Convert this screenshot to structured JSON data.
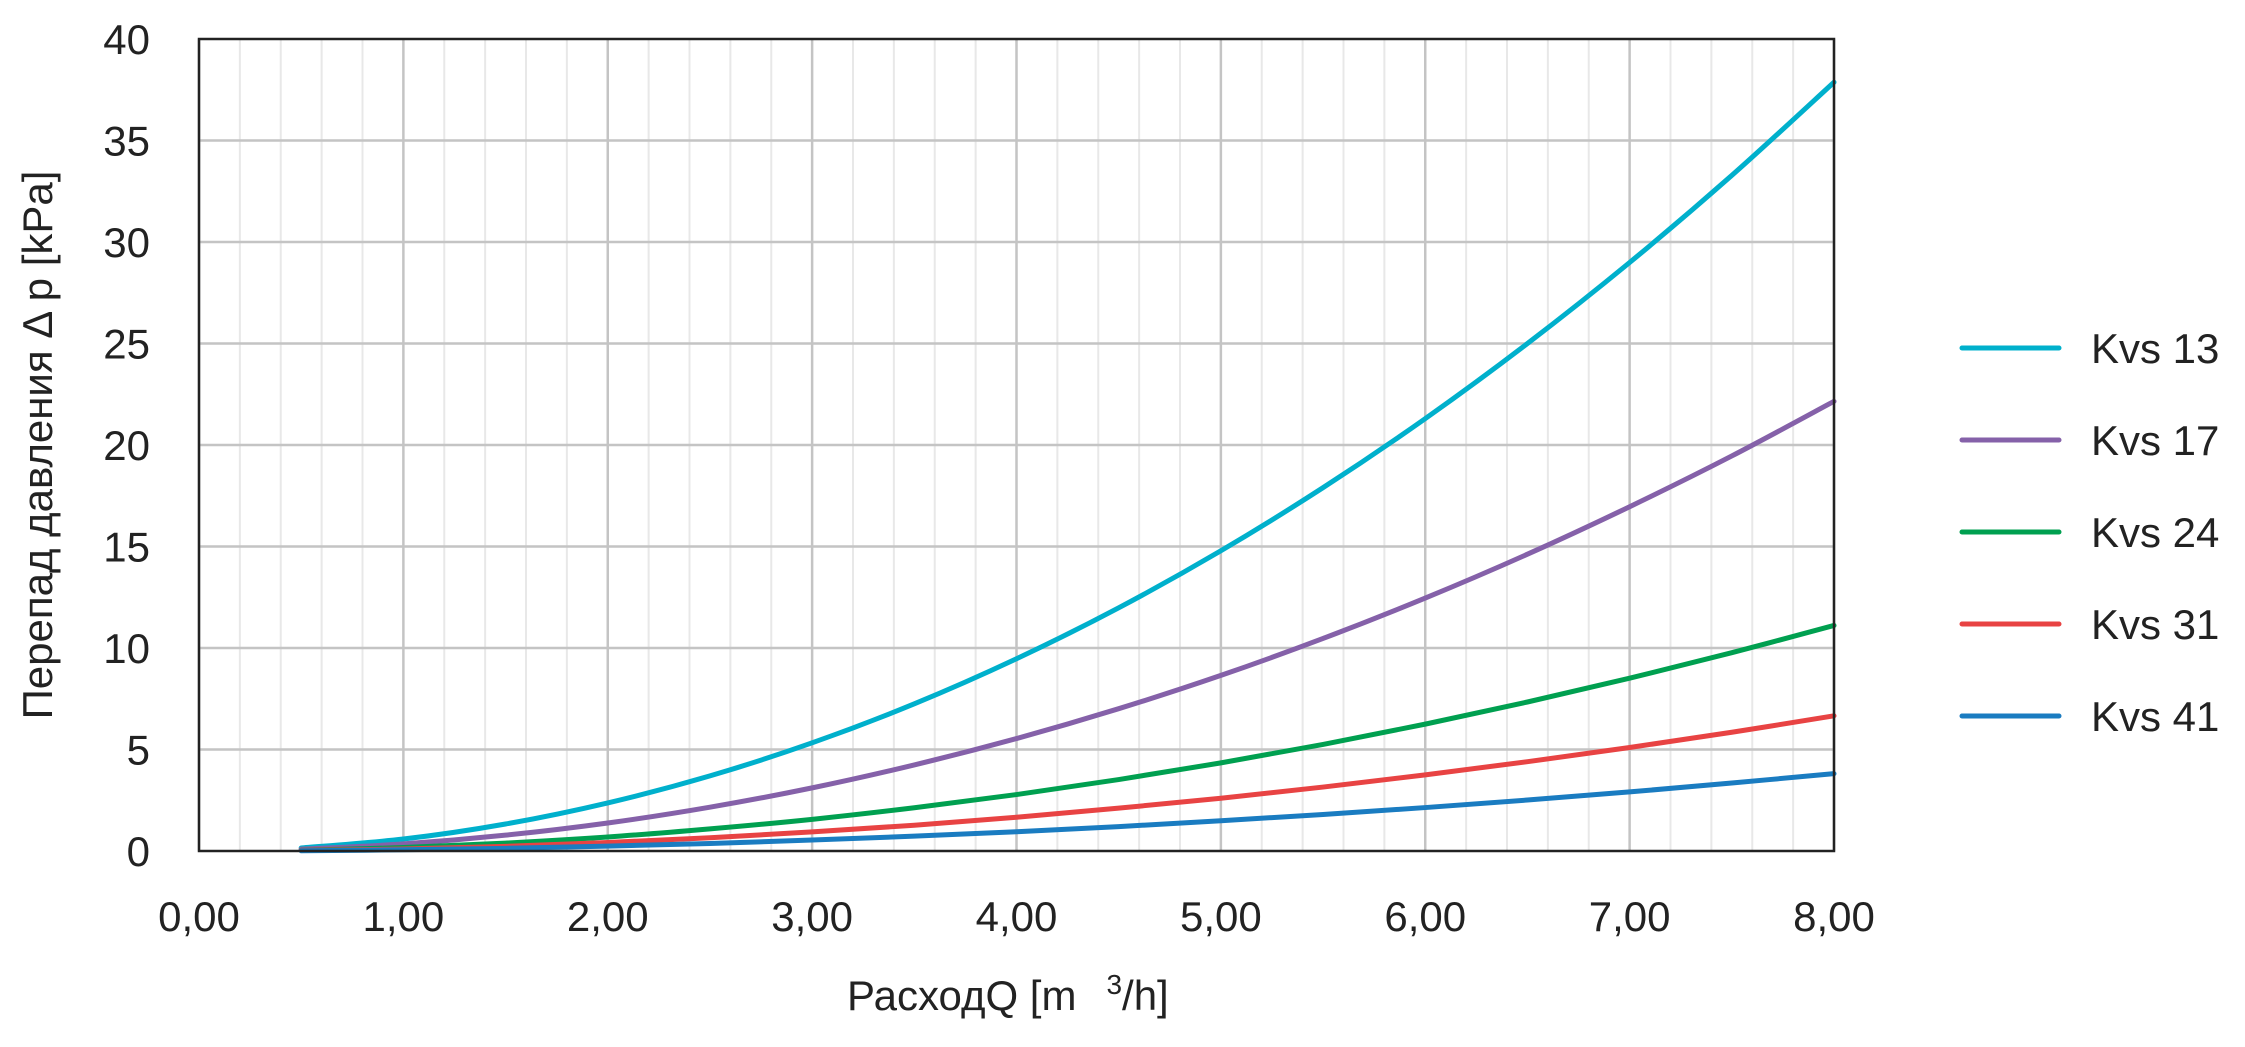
{
  "chart_data": {
    "type": "line",
    "title": "",
    "xlabel": "РасходQ [m",
    "xlabel_sup": "3",
    "xlabel_tail": "/h]",
    "ylabel": "Перепад давления Δ p [kPa]",
    "xlim": [
      0,
      8
    ],
    "ylim": [
      0,
      40
    ],
    "x_ticks": [
      "0,00",
      "1,00",
      "2,00",
      "3,00",
      "4,00",
      "5,00",
      "6,00",
      "7,00",
      "8,00"
    ],
    "y_ticks": [
      "0",
      "5",
      "10",
      "15",
      "20",
      "25",
      "30",
      "35",
      "40"
    ],
    "grid": true,
    "legend_position": "right",
    "x": [
      0.5,
      1,
      1.5,
      2,
      2.5,
      3,
      3.5,
      4,
      4.5,
      5,
      5.5,
      6,
      6.5,
      7,
      7.5,
      8
    ],
    "series": [
      {
        "name": "Kvs 13",
        "color": "#00b0cc",
        "values": [
          0.15,
          0.59,
          1.33,
          2.37,
          3.7,
          5.33,
          7.25,
          9.47,
          11.98,
          14.79,
          17.9,
          21.3,
          25.0,
          28.99,
          33.28,
          37.87
        ]
      },
      {
        "name": "Kvs 17",
        "color": "#8561a9",
        "values": [
          0.09,
          0.35,
          0.78,
          1.38,
          2.16,
          3.11,
          4.24,
          5.54,
          7.01,
          8.65,
          10.47,
          12.46,
          14.62,
          16.96,
          19.46,
          22.15
        ]
      },
      {
        "name": "Kvs 24",
        "color": "#00a050",
        "values": [
          0.04,
          0.17,
          0.39,
          0.69,
          1.09,
          1.56,
          2.13,
          2.78,
          3.52,
          4.34,
          5.25,
          6.25,
          7.34,
          8.51,
          9.77,
          11.11
        ]
      },
      {
        "name": "Kvs 31",
        "color": "#e84343",
        "values": [
          0.03,
          0.1,
          0.23,
          0.42,
          0.65,
          0.94,
          1.27,
          1.66,
          2.11,
          2.6,
          3.15,
          3.75,
          4.4,
          5.1,
          5.85,
          6.66
        ]
      },
      {
        "name": "Kvs 41",
        "color": "#1a7cc1",
        "values": [
          0.01,
          0.06,
          0.13,
          0.24,
          0.37,
          0.54,
          0.73,
          0.95,
          1.2,
          1.49,
          1.8,
          2.14,
          2.51,
          2.91,
          3.35,
          3.81
        ]
      }
    ]
  }
}
